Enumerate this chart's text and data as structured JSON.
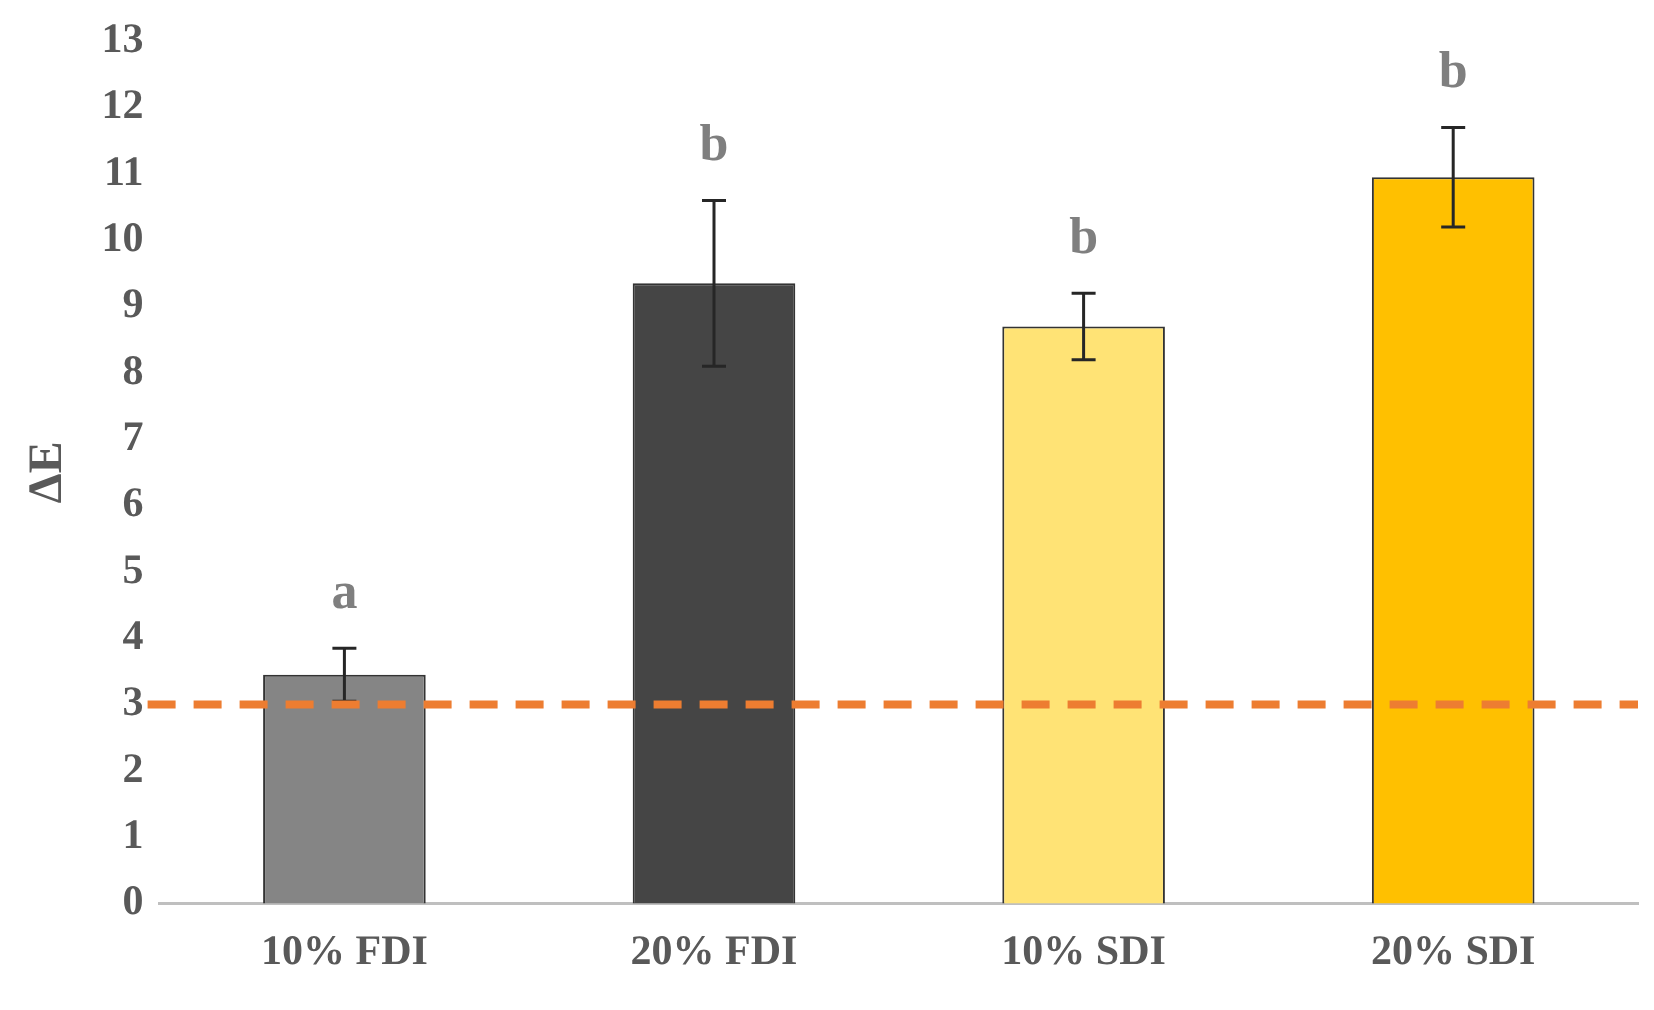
{
  "chart_data": {
    "type": "bar",
    "ylabel": "ΔE",
    "categories": [
      "10% FDI",
      "20% FDI",
      "10% SDI",
      "20% SDI"
    ],
    "values": [
      3.45,
      9.35,
      8.7,
      10.95
    ],
    "colors": [
      "#858585",
      "#454545",
      "#ffe375",
      "#ffc000"
    ],
    "errors": [
      0.4,
      1.25,
      0.5,
      0.75
    ],
    "ylim": [
      0,
      13
    ],
    "yticks": [
      0,
      1,
      2,
      3,
      4,
      5,
      6,
      7,
      8,
      9,
      10,
      11,
      12,
      13
    ],
    "grid": false,
    "legend": false,
    "ref_lines": [
      {
        "axis": "y",
        "value": 3,
        "color": "#ed7d31",
        "line_style": "dashed"
      }
    ],
    "annotations": [
      "a",
      "b",
      "b",
      "b"
    ]
  }
}
